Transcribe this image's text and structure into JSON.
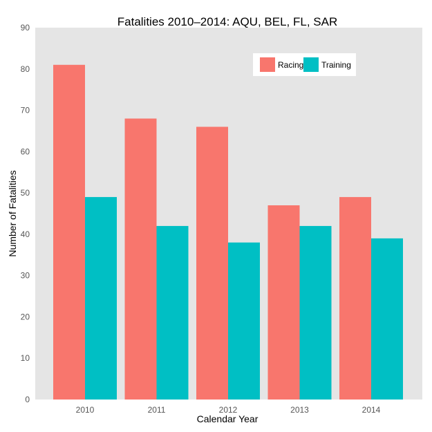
{
  "chart_data": {
    "type": "bar",
    "title": "Fatalities 2010–2014: AQU, BEL, FL, SAR",
    "xlabel": "Calendar Year",
    "ylabel": "Number of Fatalities",
    "categories": [
      "2010",
      "2011",
      "2012",
      "2013",
      "2014"
    ],
    "series": [
      {
        "name": "Racing",
        "color": "#f8766d",
        "values": [
          81,
          68,
          66,
          47,
          49
        ]
      },
      {
        "name": "Training",
        "color": "#00bfc4",
        "values": [
          49,
          42,
          38,
          42,
          39
        ]
      }
    ],
    "ylim": [
      0,
      90
    ],
    "yticks": [
      "0",
      "10",
      "20",
      "30",
      "40",
      "50",
      "60",
      "70",
      "80",
      "90"
    ],
    "grid": false,
    "panel_background": "#e5e5e5",
    "legend_position": "top-right"
  }
}
